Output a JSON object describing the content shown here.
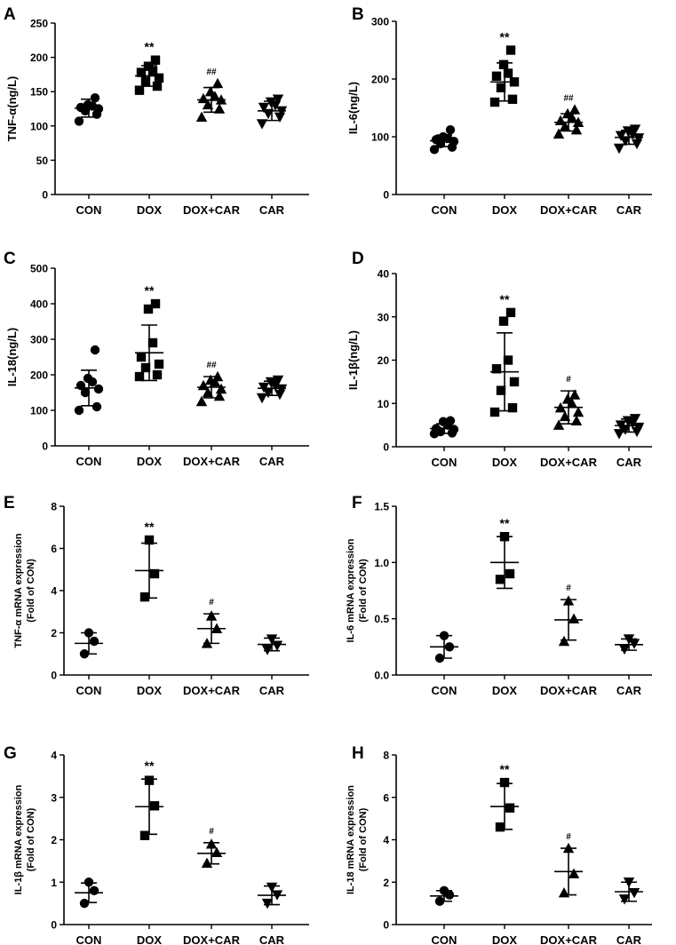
{
  "figure": {
    "description_colors": {
      "ink": "#000000",
      "background": "#ffffff"
    }
  },
  "chart_data": [
    {
      "panel": "A",
      "type": "scatter",
      "ylabel": "TNF-α(ng/L)",
      "ylim": [
        0,
        250
      ],
      "yticks": [
        0,
        50,
        100,
        150,
        200,
        250
      ],
      "categories": [
        "CON",
        "DOX",
        "DOX+CAR",
        "CAR"
      ],
      "markers": [
        "circle",
        "square",
        "triangle-up",
        "triangle-down"
      ],
      "annotations": [
        "",
        "**",
        "##",
        ""
      ],
      "series": [
        {
          "name": "CON",
          "values": [
            107,
            117,
            122,
            125,
            127,
            129,
            131,
            141
          ],
          "mean": 126,
          "sd": 13
        },
        {
          "name": "DOX",
          "values": [
            152,
            158,
            165,
            170,
            178,
            180,
            187,
            196
          ],
          "mean": 173,
          "sd": 15
        },
        {
          "name": "DOX+CAR",
          "values": [
            113,
            125,
            131,
            138,
            140,
            143,
            150,
            162
          ],
          "mean": 138,
          "sd": 18
        },
        {
          "name": "CAR",
          "values": [
            103,
            113,
            118,
            122,
            127,
            130,
            135,
            139
          ],
          "mean": 122,
          "sd": 14
        }
      ]
    },
    {
      "panel": "B",
      "type": "scatter",
      "ylabel": "IL-6(ng/L)",
      "ylim": [
        0,
        300
      ],
      "yticks": [
        0,
        100,
        200,
        300
      ],
      "categories": [
        "CON",
        "DOX",
        "DOX+CAR",
        "CAR"
      ],
      "markers": [
        "circle",
        "square",
        "triangle-up",
        "triangle-down"
      ],
      "annotations": [
        "",
        "**",
        "##",
        ""
      ],
      "series": [
        {
          "name": "CON",
          "values": [
            78,
            82,
            88,
            92,
            95,
            97,
            100,
            112
          ],
          "mean": 93,
          "sd": 10
        },
        {
          "name": "DOX",
          "values": [
            160,
            165,
            185,
            195,
            205,
            210,
            225,
            250
          ],
          "mean": 195,
          "sd": 33
        },
        {
          "name": "DOX+CAR",
          "values": [
            105,
            112,
            118,
            125,
            128,
            133,
            140,
            147
          ],
          "mean": 125,
          "sd": 15
        },
        {
          "name": "CAR",
          "values": [
            80,
            88,
            93,
            98,
            102,
            105,
            110,
            113
          ],
          "mean": 99,
          "sd": 12
        }
      ]
    },
    {
      "panel": "C",
      "type": "scatter",
      "ylabel": "IL-18(ng/L)",
      "ylim": [
        0,
        500
      ],
      "yticks": [
        0,
        100,
        200,
        300,
        400,
        500
      ],
      "categories": [
        "CON",
        "DOX",
        "DOX+CAR",
        "CAR"
      ],
      "markers": [
        "circle",
        "square",
        "triangle-up",
        "triangle-down"
      ],
      "annotations": [
        "",
        "**",
        "##",
        ""
      ],
      "series": [
        {
          "name": "CON",
          "values": [
            100,
            110,
            150,
            160,
            170,
            180,
            190,
            270
          ],
          "mean": 163,
          "sd": 50
        },
        {
          "name": "DOX",
          "values": [
            195,
            200,
            220,
            230,
            250,
            290,
            385,
            400
          ],
          "mean": 262,
          "sd": 78
        },
        {
          "name": "DOX+CAR",
          "values": [
            125,
            140,
            150,
            160,
            170,
            180,
            185,
            195
          ],
          "mean": 165,
          "sd": 30
        },
        {
          "name": "CAR",
          "values": [
            135,
            145,
            150,
            160,
            165,
            170,
            180,
            185
          ],
          "mean": 162,
          "sd": 20
        }
      ]
    },
    {
      "panel": "D",
      "type": "scatter",
      "ylabel": "IL-1β(ng/L)",
      "ylim": [
        0,
        40
      ],
      "yticks": [
        0,
        10,
        20,
        30,
        40
      ],
      "categories": [
        "CON",
        "DOX",
        "DOX+CAR",
        "CAR"
      ],
      "markers": [
        "circle",
        "square",
        "triangle-up",
        "triangle-down"
      ],
      "annotations": [
        "",
        "**",
        "#",
        ""
      ],
      "series": [
        {
          "name": "CON",
          "values": [
            3.0,
            3.2,
            3.5,
            4.0,
            4.2,
            5.0,
            5.8,
            6.0
          ],
          "mean": 4.2,
          "sd": 1.1
        },
        {
          "name": "DOX",
          "values": [
            8,
            9,
            13,
            15,
            18,
            20,
            29,
            31
          ],
          "mean": 17.3,
          "sd": 9
        },
        {
          "name": "DOX+CAR",
          "values": [
            5,
            6,
            7,
            8,
            9,
            10,
            11,
            12
          ],
          "mean": 9.1,
          "sd": 3.8
        },
        {
          "name": "CAR",
          "values": [
            3.0,
            3.5,
            4.0,
            4.5,
            5.0,
            5.5,
            6.0,
            6.5
          ],
          "mean": 4.9,
          "sd": 1.5
        }
      ]
    },
    {
      "panel": "E",
      "type": "scatter",
      "ylabel_lines": [
        "TNF-α mRNA expression",
        "(Fold of CON)"
      ],
      "ylim": [
        0,
        8
      ],
      "yticks": [
        0,
        2,
        4,
        6,
        8
      ],
      "categories": [
        "CON",
        "DOX",
        "DOX+CAR",
        "CAR"
      ],
      "markers": [
        "circle",
        "square",
        "triangle-up",
        "triangle-down"
      ],
      "annotations": [
        "",
        "**",
        "#",
        ""
      ],
      "series": [
        {
          "name": "CON",
          "values": [
            1.0,
            1.6,
            2.0
          ],
          "mean": 1.5,
          "sd": 0.5
        },
        {
          "name": "DOX",
          "values": [
            3.7,
            4.8,
            6.4
          ],
          "mean": 4.95,
          "sd": 1.3
        },
        {
          "name": "DOX+CAR",
          "values": [
            1.5,
            2.2,
            2.8
          ],
          "mean": 2.2,
          "sd": 0.7
        },
        {
          "name": "CAR",
          "values": [
            1.2,
            1.4,
            1.7
          ],
          "mean": 1.45,
          "sd": 0.3
        }
      ]
    },
    {
      "panel": "F",
      "type": "scatter",
      "ylabel_lines": [
        "IL-6 mRNA expression",
        "(Fold of CON)"
      ],
      "ylim": [
        0,
        1.5
      ],
      "yticks": [
        0.0,
        0.5,
        1.0,
        1.5
      ],
      "ytick_labels": [
        "0.0",
        "0.5",
        "1.0",
        "1.5"
      ],
      "categories": [
        "CON",
        "DOX",
        "DOX+CAR",
        "CAR"
      ],
      "markers": [
        "circle",
        "square",
        "triangle-up",
        "triangle-down"
      ],
      "annotations": [
        "",
        "**",
        "#",
        ""
      ],
      "series": [
        {
          "name": "CON",
          "values": [
            0.15,
            0.25,
            0.35
          ],
          "mean": 0.25,
          "sd": 0.1
        },
        {
          "name": "DOX",
          "values": [
            0.85,
            0.9,
            1.23
          ],
          "mean": 1.0,
          "sd": 0.23
        },
        {
          "name": "DOX+CAR",
          "values": [
            0.3,
            0.5,
            0.66
          ],
          "mean": 0.49,
          "sd": 0.18
        },
        {
          "name": "CAR",
          "values": [
            0.23,
            0.28,
            0.32
          ],
          "mean": 0.27,
          "sd": 0.05
        }
      ]
    },
    {
      "panel": "G",
      "type": "scatter",
      "ylabel_lines": [
        "IL-1β mRNA expression",
        "(Fold of CON)"
      ],
      "ylim": [
        0,
        4
      ],
      "yticks": [
        0,
        1,
        2,
        3,
        4
      ],
      "categories": [
        "CON",
        "DOX",
        "DOX+CAR",
        "CAR"
      ],
      "markers": [
        "circle",
        "square",
        "triangle-up",
        "triangle-down"
      ],
      "annotations": [
        "",
        "**",
        "#",
        ""
      ],
      "series": [
        {
          "name": "CON",
          "values": [
            0.5,
            0.8,
            1.0
          ],
          "mean": 0.75,
          "sd": 0.23
        },
        {
          "name": "DOX",
          "values": [
            2.1,
            2.8,
            3.4
          ],
          "mean": 2.78,
          "sd": 0.65
        },
        {
          "name": "DOX+CAR",
          "values": [
            1.45,
            1.7,
            1.9
          ],
          "mean": 1.68,
          "sd": 0.25
        },
        {
          "name": "CAR",
          "values": [
            0.5,
            0.7,
            0.88
          ],
          "mean": 0.69,
          "sd": 0.22
        }
      ]
    },
    {
      "panel": "H",
      "type": "scatter",
      "ylabel_lines": [
        "IL-18 mRNA expression",
        "(Fold of CON)"
      ],
      "ylim": [
        0,
        8
      ],
      "yticks": [
        0,
        2,
        4,
        6,
        8
      ],
      "categories": [
        "CON",
        "DOX",
        "DOX+CAR",
        "CAR"
      ],
      "markers": [
        "circle",
        "square",
        "triangle-up",
        "triangle-down"
      ],
      "annotations": [
        "",
        "**",
        "#",
        ""
      ],
      "series": [
        {
          "name": "CON",
          "values": [
            1.1,
            1.4,
            1.6
          ],
          "mean": 1.35,
          "sd": 0.25
        },
        {
          "name": "DOX",
          "values": [
            4.6,
            5.5,
            6.7
          ],
          "mean": 5.57,
          "sd": 1.08
        },
        {
          "name": "DOX+CAR",
          "values": [
            1.5,
            2.4,
            3.6
          ],
          "mean": 2.5,
          "sd": 1.1
        },
        {
          "name": "CAR",
          "values": [
            1.2,
            1.5,
            2.0
          ],
          "mean": 1.55,
          "sd": 0.45
        }
      ]
    }
  ]
}
